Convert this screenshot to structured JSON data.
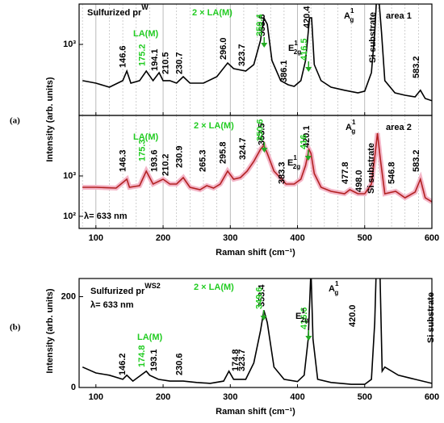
{
  "chart_data": [
    {
      "type": "line",
      "panel": "(a)",
      "title": "Sulfurized pr",
      "title_sup": "W",
      "area": "area 1",
      "ylabel": "Intensity (arb. units)",
      "la": "LA(M)",
      "two_la": "2 × LA(M)",
      "si": "Si substrate",
      "a1g": {
        "base": "A",
        "sup": "1",
        "sub": "g"
      },
      "e2g": {
        "base": "E",
        "sup": "1",
        "sub": "2g"
      },
      "color": "#000000",
      "ylog": true,
      "grid": true,
      "xlim": [
        75,
        600
      ],
      "xticks": [
        100,
        200,
        300,
        400,
        500,
        600
      ],
      "xminor": [
        80,
        120,
        140,
        160,
        180,
        220,
        240,
        260,
        280,
        320,
        340,
        360,
        380,
        420,
        440,
        460,
        480,
        520,
        540,
        560,
        580
      ],
      "ylim": [
        210,
        2430
      ],
      "yticks": [
        {
          "value": 1000,
          "label": "10³"
        }
      ],
      "x": [
        80,
        100,
        120,
        140,
        146,
        152,
        165,
        175,
        185,
        194,
        200,
        210,
        220,
        230,
        240,
        260,
        280,
        296,
        305,
        323,
        335,
        345,
        350,
        355,
        362,
        375,
        386,
        395,
        405,
        412,
        418,
        421,
        425,
        435,
        450,
        470,
        490,
        500,
        510,
        515,
        519,
        525,
        530,
        545,
        560,
        575,
        583,
        590,
        600
      ],
      "values": [
        451,
        427,
        391,
        451,
        557,
        427,
        451,
        557,
        451,
        538,
        451,
        451,
        427,
        492,
        427,
        427,
        492,
        665,
        588,
        557,
        642,
        1093,
        1795,
        1556,
        702,
        451,
        412,
        398,
        451,
        702,
        1795,
        1795,
        642,
        451,
        391,
        365,
        345,
        358,
        538,
        1304,
        4000,
        1304,
        451,
        345,
        327,
        316,
        365,
        305,
        290
      ],
      "peaks": [
        146.6,
        194.1,
        210.5,
        230.7,
        {
          "value": 296,
          "label": "296.0"
        },
        323.7,
        353.6,
        386.1,
        420.4,
        583.2
      ],
      "green_peaks": [
        175.2,
        350.4,
        416.5
      ]
    },
    {
      "type": "line",
      "area": "area 2",
      "note": "λ= 633 nm",
      "la": "LA(M)",
      "two_la": "2 × LA(M)",
      "si": "Si substrate",
      "a1g": {
        "base": "A",
        "sup": "1",
        "sub": "g"
      },
      "e2g": {
        "base": "E",
        "sup": "1",
        "sub": "2g"
      },
      "xlabel": "Raman shift (cm⁻¹)",
      "color": "#b22222",
      "band_color": "#f4b6c8",
      "ylog": true,
      "grid": true,
      "xlim": [
        75,
        600
      ],
      "xticks": [
        100,
        200,
        300,
        400,
        500,
        600
      ],
      "xminor": [
        80,
        120,
        140,
        160,
        180,
        220,
        240,
        260,
        280,
        320,
        340,
        360,
        380,
        420,
        440,
        460,
        480,
        520,
        540,
        560,
        580
      ],
      "ylim": [
        50,
        31600
      ],
      "yticks": [
        {
          "value": 100,
          "label": "10²"
        },
        {
          "value": 1000,
          "label": "10³"
        }
      ],
      "x": [
        80,
        100,
        130,
        146,
        150,
        165,
        175,
        185,
        200,
        210,
        220,
        230,
        240,
        255,
        265,
        275,
        285,
        296,
        305,
        315,
        325,
        335,
        345,
        350,
        355,
        365,
        383,
        395,
        405,
        412,
        417,
        420,
        425,
        435,
        450,
        470,
        478,
        490,
        500,
        510,
        515,
        519,
        523,
        530,
        546,
        560,
        575,
        583,
        590,
        600
      ],
      "values": [
        525,
        525,
        501,
        832,
        525,
        575,
        1318,
        631,
        832,
        631,
        631,
        912,
        525,
        457,
        575,
        501,
        631,
        1318,
        832,
        912,
        1318,
        2291,
        4571,
        5754,
        3631,
        1318,
        631,
        631,
        832,
        1820,
        4571,
        3631,
        1148,
        525,
        417,
        363,
        457,
        363,
        363,
        631,
        2884,
        11482,
        2884,
        363,
        417,
        288,
        398,
        832,
        288,
        229
      ],
      "peaks": [
        146.3,
        193.6,
        210.2,
        230.9,
        265.3,
        295.8,
        324.7,
        353.5,
        383.3,
        420.1,
        477.8,
        {
          "value": 498,
          "label": "498.0"
        },
        546.8,
        583.2
      ],
      "green_peaks": [
        175.3,
        350.6,
        416.0
      ]
    },
    {
      "type": "line",
      "panel": "(b)",
      "title": "Sulfurized pr",
      "title_sup": "WS2",
      "note": "λ= 633 nm",
      "ylabel": "Intensity (arb. units)",
      "xlabel": "Raman shift (cm⁻¹)",
      "la": "LA(M)",
      "two_la": "2 × LA(M)",
      "si": "Si substrate",
      "a1g": {
        "base": "A",
        "sup": "1",
        "sub": "g"
      },
      "e2g": {
        "base": "E",
        "sup": "1",
        "sub": "2g"
      },
      "color": "#000000",
      "ylog": false,
      "grid": false,
      "xlim": [
        75,
        600
      ],
      "xticks": [
        100,
        200,
        300,
        400,
        500,
        600
      ],
      "ylim": [
        0,
        240
      ],
      "yticks": [
        0,
        200
      ],
      "x": [
        80,
        100,
        120,
        140,
        146,
        155,
        175,
        180,
        193,
        210,
        230,
        250,
        270,
        290,
        298,
        305,
        323,
        335,
        345,
        350,
        355,
        365,
        380,
        400,
        410,
        416,
        420,
        423,
        430,
        450,
        480,
        500,
        510,
        515,
        518,
        522,
        526,
        530,
        550,
        575,
        600
      ],
      "values": [
        45,
        32,
        27,
        18,
        27,
        14,
        36,
        27,
        18,
        14,
        14,
        11,
        9,
        14,
        36,
        18,
        18,
        54,
        125,
        170,
        143,
        45,
        18,
        13,
        27,
        107,
        260,
        107,
        18,
        11,
        7,
        7,
        18,
        143,
        300,
        300,
        36,
        45,
        27,
        18,
        9
      ],
      "peaks": [
        146.2,
        193.1,
        230.6,
        174.8,
        323.7,
        353.4,
        {
          "value": 420,
          "label": "420.0"
        }
      ],
      "green_peaks": [
        174.8,
        349.6,
        416.6
      ]
    }
  ]
}
